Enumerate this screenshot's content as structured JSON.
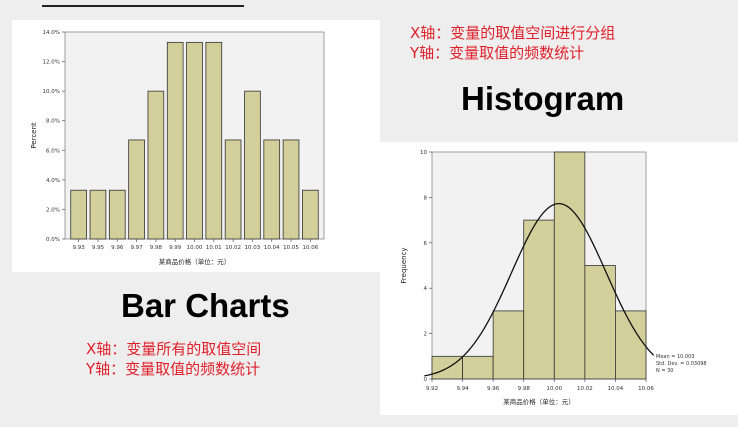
{
  "notes": {
    "histogram_x": "X轴：变量的取值空间进行分组",
    "histogram_y": "Y轴：变量取值的频数统计",
    "bar_x": "X轴：变量所有的取值空间",
    "bar_y": "Y轴：变量取值的频数统计"
  },
  "headings": {
    "histogram": "Histogram",
    "bar_charts": "Bar Charts"
  },
  "colors": {
    "bar_fill": "#d3cf9b",
    "bar_stroke": "#333333",
    "note_text": "#e0202a"
  },
  "chart_data": [
    {
      "type": "bar",
      "categories": [
        "9.93",
        "9.95",
        "9.96",
        "9.97",
        "9.98",
        "9.99",
        "10.00",
        "10.01",
        "10.02",
        "10.03",
        "10.04",
        "10.05",
        "10.06"
      ],
      "values": [
        3.3,
        3.3,
        3.3,
        6.7,
        10.0,
        13.3,
        13.3,
        13.3,
        6.7,
        10.0,
        6.7,
        6.7,
        3.3
      ],
      "title": "",
      "xlabel": "某商品价格（单位：元）",
      "ylabel": "Percent",
      "ylim": [
        0,
        14
      ],
      "yticks": [
        "0.0%",
        "2.0%",
        "4.0%",
        "6.0%",
        "8.0%",
        "10.0%",
        "12.0%",
        "14.0%"
      ]
    },
    {
      "type": "bar",
      "subtype": "histogram",
      "bins": [
        [
          9.92,
          9.94
        ],
        [
          9.94,
          9.96
        ],
        [
          9.96,
          9.98
        ],
        [
          9.98,
          10.0
        ],
        [
          10.0,
          10.02
        ],
        [
          10.02,
          10.04
        ],
        [
          10.04,
          10.06
        ]
      ],
      "values": [
        1,
        1,
        3,
        7,
        10,
        5,
        3
      ],
      "xticks": [
        "9.92",
        "9.94",
        "9.96",
        "9.98",
        "10.00",
        "10.02",
        "10.04",
        "10.06"
      ],
      "yticks": [
        "0",
        "2",
        "4",
        "6",
        "8",
        "10"
      ],
      "xlabel": "某商品价格（单位：元）",
      "ylabel": "Frequency",
      "xlim": [
        9.92,
        10.06
      ],
      "ylim": [
        0,
        10
      ],
      "normal_curve": {
        "mean": 10.003,
        "sd": 0.03098,
        "n": 30,
        "bin_width": 0.02
      },
      "stats": [
        "Mean = 10.003",
        "Std. Dev. = 0.03098",
        "N = 30"
      ]
    }
  ]
}
